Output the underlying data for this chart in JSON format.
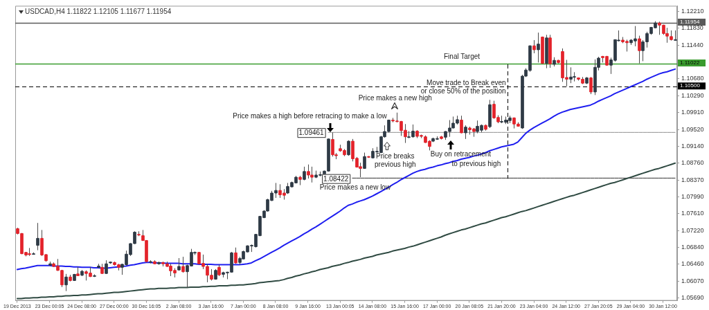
{
  "chart_data": {
    "type": "candlestick",
    "title": "USDCAD,H4 1.11822 1.12105 1.11677 1.11954",
    "categories": [
      "19 Dec 2013",
      null,
      null,
      null,
      null,
      null,
      null,
      null,
      "23 Dec 00:05",
      null,
      null,
      null,
      null,
      null,
      null,
      null,
      "24 Dec 08:00",
      null,
      null,
      null,
      null,
      null,
      null,
      null,
      "27 Dec 00:00",
      null,
      null,
      null,
      null,
      null,
      null,
      null,
      "30 Dec 16:05",
      null,
      null,
      null,
      null,
      null,
      null,
      null,
      "2 Jan 08:00",
      null,
      null,
      null,
      null,
      null,
      null,
      null,
      "3 Jan 16:00",
      null,
      null,
      null,
      null,
      null,
      null,
      null,
      "7 Jan 00:00",
      null,
      null,
      null,
      null,
      null,
      null,
      null,
      "8 Jan 08:00",
      null,
      null,
      null,
      null,
      null,
      null,
      null,
      "9 Jan 16:00",
      null,
      null,
      null,
      null,
      null,
      null,
      null,
      "13 Jan 00:05",
      null,
      null,
      null,
      null,
      null,
      null,
      null,
      "14 Jan 08:00",
      null,
      null,
      null,
      null,
      null,
      null,
      null,
      "15 Jan 16:00",
      null,
      null,
      null,
      null,
      null,
      null,
      null,
      "17 Jan 00:00",
      null,
      null,
      null,
      null,
      null,
      null,
      null,
      "20 Jan 08:05",
      null,
      null,
      null,
      null,
      null,
      null,
      null,
      "21 Jan 20:00",
      null,
      null,
      null,
      null,
      null,
      null,
      null,
      "23 Jan 04:00",
      null,
      null,
      null,
      null,
      null,
      null,
      null,
      "24 Jan 12:00",
      null,
      null,
      null,
      null,
      null,
      null,
      null,
      "27 Jan 20:05",
      null,
      null,
      null,
      null,
      null,
      null,
      null,
      "29 Jan 04:00",
      null,
      null,
      null,
      null,
      null,
      null,
      null,
      "30 Jan 12:00",
      null,
      null,
      null
    ],
    "ylim": [
      1.0563,
      1.1234
    ],
    "yticks": [
      {
        "value": 1.0569,
        "label": "1.05690"
      },
      {
        "value": 1.0607,
        "label": "1.06070"
      },
      {
        "value": 1.0646,
        "label": "1.06460"
      },
      {
        "value": 1.0684,
        "label": "1.06840"
      },
      {
        "value": 1.0722,
        "label": "1.07220"
      },
      {
        "value": 1.0761,
        "label": "1.07610"
      },
      {
        "value": 1.0799,
        "label": "1.07990"
      },
      {
        "value": 1.0837,
        "label": "1.08370"
      },
      {
        "value": 1.0876,
        "label": "1.08760"
      },
      {
        "value": 1.0914,
        "label": "1.09140"
      },
      {
        "value": 1.0952,
        "label": "1.09520"
      },
      {
        "value": 1.0991,
        "label": "1.09910"
      },
      {
        "value": 1.1029,
        "label": "1.10290"
      },
      {
        "value": 1.1068,
        "label": "1.10680"
      },
      {
        "value": 1.1144,
        "label": "1.11440"
      },
      {
        "value": 1.1183,
        "label": "1.11830"
      },
      {
        "value": 1.1221,
        "label": "1.12210"
      }
    ],
    "series": [
      {
        "type": "line",
        "color": "#1e1ef0",
        "values": [
          1.0634,
          1.0636,
          1.0637,
          1.0639,
          1.0641,
          1.0643,
          1.0643,
          1.0643,
          1.0643,
          1.0642,
          1.0642,
          1.0642,
          1.0641,
          1.0641,
          1.064,
          1.064,
          1.0639,
          1.0639,
          1.0639,
          1.0638,
          1.0638,
          1.0637,
          1.0637,
          1.0638,
          1.0639,
          1.064,
          1.0641,
          1.0642,
          1.0644,
          1.0645,
          1.0647,
          1.0649,
          1.065,
          1.065,
          1.0649,
          1.0649,
          1.0649,
          1.0648,
          1.0648,
          1.0648,
          1.0648,
          1.0647,
          1.0647,
          1.0647,
          1.0647,
          1.0646,
          1.0646,
          1.0646,
          1.0646,
          1.0645,
          1.0645,
          1.0645,
          1.0645,
          1.0645,
          1.0645,
          1.0645,
          1.0646,
          1.0647,
          1.0649,
          1.0654,
          1.0658,
          1.0663,
          1.0668,
          1.0673,
          1.0678,
          1.0683,
          1.0689,
          1.0694,
          1.0699,
          1.0704,
          1.0709,
          1.0715,
          1.072,
          1.0726,
          1.0731,
          1.0737,
          1.0743,
          1.0749,
          1.0755,
          1.0761,
          1.0767,
          1.0774,
          1.078,
          1.0783,
          1.0787,
          1.079,
          1.0793,
          1.0797,
          1.0801,
          1.0806,
          1.0811,
          1.0816,
          1.0821,
          1.0827,
          1.0832,
          1.0838,
          1.0843,
          1.0848,
          1.0853,
          1.0857,
          1.086,
          1.0862,
          1.0865,
          1.0867,
          1.087,
          1.0872,
          1.0875,
          1.0877,
          1.088,
          1.0882,
          1.0885,
          1.0887,
          1.0889,
          1.0892,
          1.0894,
          1.0897,
          1.09,
          1.0904,
          1.0907,
          1.091,
          1.0913,
          1.0915,
          1.0917,
          1.0919,
          1.0924,
          1.0934,
          1.0944,
          1.0951,
          1.0957,
          1.0962,
          1.0967,
          1.0972,
          1.0977,
          1.0983,
          1.0988,
          1.0992,
          1.0995,
          1.0998,
          1.1,
          1.1002,
          1.1004,
          1.1006,
          1.1008,
          1.1012,
          1.1017,
          1.1021,
          1.1025,
          1.1029,
          1.1034,
          1.1038,
          1.1042,
          1.1046,
          1.105,
          1.1054,
          1.1058,
          1.1062,
          1.1067,
          1.1071,
          1.1075,
          1.1079,
          1.1082,
          1.1084,
          1.1087,
          1.109
        ]
      },
      {
        "type": "line",
        "color": "#2f4a42",
        "values": [
          1.0568,
          1.0568,
          1.0569,
          1.0569,
          1.057,
          1.057,
          1.0571,
          1.0571,
          1.0572,
          1.0572,
          1.0573,
          1.0573,
          1.0574,
          1.0574,
          1.0575,
          1.0575,
          1.0576,
          1.0576,
          1.0577,
          1.0578,
          1.0579,
          1.0579,
          1.058,
          1.0581,
          1.0582,
          1.0582,
          1.0583,
          1.0584,
          1.0585,
          1.0586,
          1.0587,
          1.0588,
          1.0589,
          1.059,
          1.059,
          1.0591,
          1.0591,
          1.0591,
          1.0592,
          1.0592,
          1.0593,
          1.0593,
          1.0593,
          1.0594,
          1.0594,
          1.0594,
          1.0595,
          1.0595,
          1.0596,
          1.0596,
          1.0597,
          1.0597,
          1.0597,
          1.0598,
          1.0598,
          1.0599,
          1.0599,
          1.06,
          1.0601,
          1.0602,
          1.0604,
          1.0605,
          1.0606,
          1.0607,
          1.0608,
          1.0609,
          1.0611,
          1.0614,
          1.0616,
          1.0619,
          1.0621,
          1.0624,
          1.0626,
          1.0629,
          1.0631,
          1.0634,
          1.0636,
          1.0638,
          1.0641,
          1.0643,
          1.0645,
          1.0648,
          1.065,
          1.0653,
          1.0655,
          1.0657,
          1.066,
          1.0662,
          1.0664,
          1.0667,
          1.0669,
          1.0671,
          1.0673,
          1.0676,
          1.0678,
          1.068,
          1.0682,
          1.0685,
          1.0687,
          1.069,
          1.0693,
          1.0696,
          1.0699,
          1.0702,
          1.0705,
          1.0708,
          1.0712,
          1.0715,
          1.0718,
          1.0721,
          1.0724,
          1.0726,
          1.0729,
          1.0732,
          1.0735,
          1.0738,
          1.074,
          1.0743,
          1.0746,
          1.0749,
          1.0752,
          1.0754,
          1.0757,
          1.076,
          1.0763,
          1.0766,
          1.0768,
          1.0771,
          1.0774,
          1.0777,
          1.078,
          1.0783,
          1.0786,
          1.0789,
          1.0792,
          1.0795,
          1.0798,
          1.0801,
          1.0803,
          1.0806,
          1.0809,
          1.0812,
          1.0815,
          1.0818,
          1.0821,
          1.0824,
          1.0827,
          1.083,
          1.0832,
          1.0835,
          1.0838,
          1.0841,
          1.0844,
          1.0847,
          1.085,
          1.0853,
          1.0856,
          1.0859,
          1.0862,
          1.0864,
          1.0867,
          1.087,
          1.0873,
          1.0876
        ]
      },
      {
        "type": "line",
        "color": "#909090",
        "values": [
          null,
          null,
          null,
          null,
          null,
          null,
          null,
          null,
          null,
          null,
          null,
          null,
          null,
          null,
          null,
          null,
          null,
          null,
          null,
          null,
          null,
          null,
          null,
          null,
          null,
          null,
          null,
          null,
          null,
          null,
          null,
          null,
          null,
          null,
          null,
          null,
          null,
          null,
          null,
          null,
          null,
          null,
          null,
          null,
          null,
          null,
          null,
          null,
          null,
          null,
          null,
          null,
          null,
          null,
          null,
          null,
          null,
          null,
          null,
          null,
          null,
          null,
          null,
          null,
          null,
          null,
          null,
          null,
          null,
          null,
          null,
          null,
          null,
          null,
          null,
          null,
          null,
          1.0946,
          1.0946,
          1.0946,
          1.0946,
          1.0946,
          1.0946,
          1.0946,
          1.0946,
          1.0946,
          1.0946,
          1.0946,
          1.0946,
          1.0946,
          1.0946,
          1.0946,
          1.0946,
          1.0946,
          1.0946,
          1.0946,
          1.0946,
          1.0946,
          1.0946,
          1.0946,
          1.0946,
          1.0946,
          1.0946,
          1.0946,
          1.0946,
          1.0946,
          1.0946,
          1.0946,
          1.0946,
          1.0946,
          1.0946,
          1.0946,
          1.0946,
          1.0946,
          1.0946,
          1.0946,
          1.0946,
          1.0946,
          1.0946,
          1.0946,
          1.0946,
          1.0946,
          1.0946,
          1.0946,
          1.0946,
          1.0946,
          1.0946,
          1.0946,
          1.0946,
          1.0946,
          1.0946,
          1.0946,
          1.0946,
          1.0946,
          1.0946,
          1.0946,
          1.0946,
          1.0946,
          1.0946,
          1.0946,
          1.0946,
          1.0946,
          1.0946,
          1.0946,
          1.0946,
          1.0946,
          1.0946,
          1.0946,
          1.0946,
          1.0946,
          1.0946,
          1.0946,
          1.0946,
          1.0946,
          1.0946,
          1.0946,
          1.0946,
          1.0946,
          1.0946,
          1.0946,
          1.0946,
          1.0946,
          1.0946,
          1.0946
        ]
      },
      {
        "type": "line",
        "color": "#303030",
        "values": [
          null,
          null,
          null,
          null,
          null,
          null,
          null,
          null,
          null,
          null,
          null,
          null,
          null,
          null,
          null,
          null,
          null,
          null,
          null,
          null,
          null,
          null,
          null,
          null,
          null,
          null,
          null,
          null,
          null,
          null,
          null,
          null,
          null,
          null,
          null,
          null,
          null,
          null,
          null,
          null,
          null,
          null,
          null,
          null,
          null,
          null,
          null,
          null,
          null,
          null,
          null,
          null,
          null,
          null,
          null,
          null,
          null,
          null,
          null,
          null,
          null,
          null,
          null,
          null,
          null,
          null,
          null,
          null,
          null,
          null,
          null,
          null,
          null,
          null,
          null,
          null,
          null,
          null,
          null,
          null,
          null,
          null,
          null,
          1.0842,
          1.0842,
          1.0842,
          1.0842,
          1.0842,
          1.0842,
          1.0842,
          1.0842,
          1.0842,
          1.0842,
          1.0842,
          1.0842,
          1.0842,
          1.0842,
          1.0842,
          1.0842,
          1.0842,
          1.0842,
          1.0842,
          1.0842,
          1.0842,
          1.0842,
          1.0842,
          1.0842,
          1.0842,
          1.0842,
          1.0842,
          1.0842,
          1.0842,
          1.0842,
          1.0842,
          1.0842,
          1.0842,
          1.0842,
          1.0842,
          1.0842,
          1.0842,
          1.0842,
          1.0842,
          1.0842,
          1.0842,
          1.0842,
          1.0842,
          1.0842,
          1.0842,
          1.0842,
          1.0842,
          1.0842,
          1.0842,
          1.0842,
          1.0842,
          1.0842,
          1.0842,
          1.0842,
          1.0842,
          1.0842,
          1.0842,
          1.0842,
          1.0842,
          1.0842,
          1.0842,
          1.0842,
          1.0842,
          1.0842,
          1.0842,
          1.0842,
          1.0842,
          1.0842,
          1.0842,
          1.0842,
          1.0842,
          1.0842,
          1.0842,
          1.0842,
          1.0842,
          1.0842,
          1.0842,
          1.0842,
          1.0842,
          1.0842,
          1.0842
        ]
      },
      {
        "ohlc": [
          [
            1.0727,
            1.0729,
            1.0714,
            1.0716
          ],
          [
            1.0716,
            1.0717,
            1.0669,
            1.067
          ],
          [
            1.0673,
            1.0674,
            1.0664,
            1.0667
          ],
          [
            1.067,
            1.0683,
            1.0665,
            1.0668
          ],
          [
            1.067,
            1.0673,
            1.0669,
            1.067
          ],
          [
            1.0689,
            1.074,
            1.0678,
            1.0705
          ],
          [
            1.0705,
            1.0724,
            1.0665,
            1.0667
          ],
          [
            1.0668,
            1.0669,
            1.0652,
            1.0654
          ],
          [
            1.0644,
            1.0652,
            1.0642,
            1.0647
          ],
          [
            1.0647,
            1.065,
            1.064,
            1.0641
          ],
          [
            1.0642,
            1.0658,
            1.0631,
            1.0632
          ],
          [
            1.0632,
            1.0633,
            1.0594,
            1.0599
          ],
          [
            1.0599,
            1.0624,
            1.0585,
            1.0617
          ],
          [
            1.0617,
            1.0622,
            1.0607,
            1.0609
          ],
          [
            1.0609,
            1.0624,
            1.0608,
            1.0623
          ],
          [
            1.0624,
            1.064,
            1.0619,
            1.062
          ],
          [
            1.0621,
            1.0633,
            1.0619,
            1.063
          ],
          [
            1.0629,
            1.0632,
            1.0609,
            1.0625
          ],
          [
            1.0626,
            1.064,
            1.0617,
            1.0618
          ],
          [
            1.0619,
            1.0623,
            1.0617,
            1.062
          ],
          [
            1.0639,
            1.0647,
            1.0637,
            1.0642
          ],
          [
            1.0639,
            1.0647,
            1.0624,
            1.0625
          ],
          [
            1.0625,
            1.0655,
            1.0624,
            1.0647
          ],
          [
            1.0649,
            1.0652,
            1.0647,
            1.0651
          ],
          [
            1.065,
            1.0652,
            1.0643,
            1.0645
          ],
          [
            1.0645,
            1.0647,
            1.0632,
            1.0639
          ],
          [
            1.0639,
            1.0647,
            1.0622,
            1.0646
          ],
          [
            1.0645,
            1.0677,
            1.0643,
            1.0669
          ],
          [
            1.0668,
            1.0694,
            1.0665,
            1.0693
          ],
          [
            1.0693,
            1.0721,
            1.0692,
            1.0719
          ],
          [
            1.0714,
            1.0721,
            1.071,
            1.0713
          ],
          [
            1.0711,
            1.0724,
            1.0699,
            1.07
          ],
          [
            1.07,
            1.0701,
            1.065,
            1.0652
          ],
          [
            1.0651,
            1.0655,
            1.0648,
            1.0652
          ],
          [
            1.0652,
            1.0655,
            1.0646,
            1.0647
          ],
          [
            1.0647,
            1.0652,
            1.0645,
            1.065
          ],
          [
            1.065,
            1.0652,
            1.0641,
            1.0647
          ],
          [
            1.0647,
            1.0652,
            1.064,
            1.0641
          ],
          [
            1.0642,
            1.0647,
            1.0619,
            1.0631
          ],
          [
            1.0632,
            1.0637,
            1.0616,
            1.0626
          ],
          [
            1.0633,
            1.066,
            1.0632,
            1.0641
          ],
          [
            1.0641,
            1.0663,
            1.0627,
            1.0629
          ],
          [
            1.0629,
            1.0645,
            1.0592,
            1.0643
          ],
          [
            1.0642,
            1.0681,
            1.0641,
            1.0673
          ],
          [
            1.0672,
            1.0675,
            1.0667,
            1.0673
          ],
          [
            1.0673,
            1.0674,
            1.0646,
            1.0647
          ],
          [
            1.0648,
            1.0668,
            1.0635,
            1.0641
          ],
          [
            1.0641,
            1.0647,
            1.0605,
            1.0621
          ],
          [
            1.0621,
            1.0635,
            1.0609,
            1.0612
          ],
          [
            1.0612,
            1.0635,
            1.0611,
            1.0632
          ],
          [
            1.0639,
            1.0645,
            1.0619,
            1.0622
          ],
          [
            1.0623,
            1.0629,
            1.0616,
            1.0627
          ],
          [
            1.0627,
            1.0629,
            1.0612,
            1.0628
          ],
          [
            1.0628,
            1.0674,
            1.0627,
            1.0672
          ],
          [
            1.0672,
            1.0684,
            1.0647,
            1.0649
          ],
          [
            1.065,
            1.0663,
            1.0645,
            1.0659
          ],
          [
            1.0658,
            1.0677,
            1.0657,
            1.0675
          ],
          [
            1.0674,
            1.0689,
            1.0673,
            1.0688
          ],
          [
            1.0688,
            1.0691,
            1.0674,
            1.0689
          ],
          [
            1.0686,
            1.0715,
            1.0684,
            1.0714
          ],
          [
            1.0711,
            1.0756,
            1.071,
            1.0755
          ],
          [
            1.0752,
            1.0769,
            1.0751,
            1.0767
          ],
          [
            1.0767,
            1.0795,
            1.0766,
            1.0793
          ],
          [
            1.0791,
            1.0813,
            1.079,
            1.0808
          ],
          [
            1.0808,
            1.0831,
            1.0797,
            1.0814
          ],
          [
            1.0814,
            1.0828,
            1.0797,
            1.0804
          ],
          [
            1.0808,
            1.0817,
            1.0793,
            1.0803
          ],
          [
            1.0808,
            1.0831,
            1.0806,
            1.0823
          ],
          [
            1.0822,
            1.0834,
            1.0821,
            1.0832
          ],
          [
            1.0831,
            1.0847,
            1.083,
            1.0844
          ],
          [
            1.0844,
            1.0847,
            1.0826,
            1.0839
          ],
          [
            1.0839,
            1.0868,
            1.0837,
            1.0857
          ],
          [
            1.0857,
            1.0873,
            1.0841,
            1.0849
          ],
          [
            1.0849,
            1.0868,
            1.0832,
            1.0844
          ],
          [
            1.0844,
            1.0859,
            1.0842,
            1.0849
          ],
          [
            1.085,
            1.0857,
            1.0846,
            1.085
          ],
          [
            1.0849,
            1.0859,
            1.0848,
            1.0858
          ],
          [
            1.0858,
            1.0932,
            1.0857,
            1.0931
          ],
          [
            1.093,
            1.0946,
            1.0891,
            1.0895
          ],
          [
            1.0895,
            1.0899,
            1.0885,
            1.0893
          ],
          [
            1.0909,
            1.0918,
            1.0902,
            1.0904
          ],
          [
            1.0905,
            1.0908,
            1.0892,
            1.0895
          ],
          [
            1.0895,
            1.0928,
            1.0893,
            1.0926
          ],
          [
            1.0926,
            1.0931,
            1.088,
            1.0886
          ],
          [
            1.0887,
            1.089,
            1.0866,
            1.0867
          ],
          [
            1.0868,
            1.0877,
            1.0844,
            1.0864
          ],
          [
            1.0864,
            1.09,
            1.0863,
            1.0891
          ],
          [
            1.0891,
            1.0892,
            1.0888,
            1.089
          ],
          [
            1.0888,
            1.091,
            1.0887,
            1.0903
          ],
          [
            1.0902,
            1.0913,
            1.09,
            1.0903
          ],
          [
            1.09,
            1.0938,
            1.0899,
            1.0936
          ],
          [
            1.0936,
            1.0962,
            1.0934,
            1.0948
          ],
          [
            1.0948,
            1.0975,
            1.0946,
            1.0974
          ],
          [
            1.0974,
            1.0979,
            1.0969,
            1.0972
          ],
          [
            1.0972,
            1.0991,
            1.0969,
            1.0971
          ],
          [
            1.0971,
            1.0972,
            1.0938,
            1.095
          ],
          [
            1.0951,
            1.0965,
            1.0922,
            1.0936
          ],
          [
            1.0935,
            1.0949,
            1.0933,
            1.0936
          ],
          [
            1.0936,
            1.0964,
            1.0934,
            1.0949
          ],
          [
            1.0949,
            1.0951,
            1.0933,
            1.0937
          ],
          [
            1.0939,
            1.0941,
            1.0933,
            1.0937
          ],
          [
            1.0936,
            1.0939,
            1.0922,
            1.0923
          ],
          [
            1.0926,
            1.0928,
            1.0905,
            1.0914
          ],
          [
            1.0926,
            1.0934,
            1.0924,
            1.0932
          ],
          [
            1.0932,
            1.0937,
            1.0929,
            1.0932
          ],
          [
            1.0936,
            1.0938,
            1.093,
            1.0932
          ],
          [
            1.0935,
            1.0949,
            1.0929,
            1.0948
          ],
          [
            1.0948,
            1.0974,
            1.0936,
            1.0956
          ],
          [
            1.0956,
            1.0982,
            1.0955,
            1.0967
          ],
          [
            1.0967,
            1.0984,
            1.0964,
            1.0975
          ],
          [
            1.0974,
            1.0984,
            1.0944,
            1.0945
          ],
          [
            1.0945,
            1.0962,
            1.0931,
            1.0958
          ],
          [
            1.0956,
            1.0959,
            1.0941,
            1.0952
          ],
          [
            1.0954,
            1.0956,
            1.0936,
            1.0948
          ],
          [
            1.0948,
            1.0973,
            1.0944,
            1.096
          ],
          [
            1.0951,
            1.0964,
            1.0946,
            1.0962
          ],
          [
            1.0962,
            1.0964,
            1.095,
            1.0953
          ],
          [
            1.0959,
            1.102,
            1.0956,
            1.1009
          ],
          [
            1.101,
            1.1018,
            1.0977,
            1.0979
          ],
          [
            1.098,
            1.0985,
            1.0967,
            1.097
          ],
          [
            1.097,
            1.0984,
            1.0967,
            1.0971
          ],
          [
            1.0969,
            1.0982,
            1.0965,
            1.0974
          ],
          [
            1.0973,
            1.0984,
            1.0967,
            1.0979
          ],
          [
            1.0979,
            1.098,
            1.0955,
            1.0965
          ],
          [
            1.0965,
            1.0969,
            1.0959,
            1.096
          ],
          [
            1.0956,
            1.1077,
            1.0954,
            1.1074
          ],
          [
            1.1074,
            1.1092,
            1.1072,
            1.1088
          ],
          [
            1.1087,
            1.1144,
            1.1084,
            1.1143
          ],
          [
            1.1143,
            1.1156,
            1.1126,
            1.1134
          ],
          [
            1.1134,
            1.1173,
            1.1105,
            1.1147
          ],
          [
            1.1163,
            1.1164,
            1.1102,
            1.1103
          ],
          [
            1.1103,
            1.1168,
            1.1092,
            1.1161
          ],
          [
            1.1161,
            1.1168,
            1.1093,
            1.1102
          ],
          [
            1.1101,
            1.1117,
            1.1096,
            1.111
          ],
          [
            1.111,
            1.1111,
            1.1103,
            1.1105
          ],
          [
            1.113,
            1.1137,
            1.1061,
            1.107
          ],
          [
            1.1071,
            1.1111,
            1.1051,
            1.1067
          ],
          [
            1.1067,
            1.1094,
            1.1058,
            1.1072
          ],
          [
            1.1072,
            1.1083,
            1.1062,
            1.1073
          ],
          [
            1.107,
            1.1071,
            1.1064,
            1.1067
          ],
          [
            1.1067,
            1.1072,
            1.1056,
            1.1058
          ],
          [
            1.1058,
            1.1072,
            1.1056,
            1.107
          ],
          [
            1.107,
            1.1072,
            1.1033,
            1.1038
          ],
          [
            1.1038,
            1.1112,
            1.1031,
            1.1094
          ],
          [
            1.1094,
            1.1118,
            1.1087,
            1.1115
          ],
          [
            1.1119,
            1.112,
            1.1105,
            1.1116
          ],
          [
            1.1119,
            1.112,
            1.1098,
            1.1099
          ],
          [
            1.1099,
            1.1116,
            1.1079,
            1.1111
          ],
          [
            1.111,
            1.1157,
            1.1107,
            1.1157
          ],
          [
            1.1156,
            1.1178,
            1.1153,
            1.1156
          ],
          [
            1.1156,
            1.1163,
            1.1149,
            1.1152
          ],
          [
            1.1153,
            1.1157,
            1.113,
            1.115
          ],
          [
            1.115,
            1.1158,
            1.1145,
            1.1156
          ],
          [
            1.1154,
            1.1188,
            1.1142,
            1.1159
          ],
          [
            1.1159,
            1.1166,
            1.1103,
            1.1132
          ],
          [
            1.1132,
            1.1156,
            1.1108,
            1.1152
          ],
          [
            1.1152,
            1.1175,
            1.1139,
            1.1171
          ],
          [
            1.1171,
            1.1186,
            1.1168,
            1.1185
          ],
          [
            1.1184,
            1.1199,
            1.1183,
            1.1195
          ],
          [
            1.1195,
            1.1198,
            1.1168,
            1.119
          ],
          [
            1.119,
            1.1191,
            1.1168,
            1.1171
          ],
          [
            1.1171,
            1.1184,
            1.115,
            1.1165
          ],
          [
            1.1164,
            1.1178,
            1.1155,
            1.1157
          ],
          [
            1.1157,
            1.1178,
            1.1155,
            1.1157
          ]
        ],
        "colors": [
          "#e3232b",
          "#e3232b",
          "#e3232b",
          "#e3232b",
          "#2f3a45",
          "#2f3a45",
          "#e3232b",
          "#e3232b",
          "#2f3a45",
          "#e3232b",
          "#e3232b",
          "#e3232b",
          "#2f3a45",
          "#e3232b",
          "#2f3a45",
          "#e3232b",
          "#2f3a45",
          "#e3232b",
          "#e3232b",
          "#2f3a45",
          "#2f3a45",
          "#e3232b",
          "#2f3a45",
          "#2f3a45",
          "#e3232b",
          "#e3232b",
          "#2f3a45",
          "#2f3a45",
          "#2f3a45",
          "#2f3a45",
          "#e3232b",
          "#e3232b",
          "#e3232b",
          "#2f3a45",
          "#e3232b",
          "#2f3a45",
          "#e3232b",
          "#e3232b",
          "#e3232b",
          "#e3232b",
          "#2f3a45",
          "#e3232b",
          "#2f3a45",
          "#2f3a45",
          "#2f3a45",
          "#e3232b",
          "#e3232b",
          "#e3232b",
          "#e3232b",
          "#2f3a45",
          "#e3232b",
          "#2f3a45",
          "#2f3a45",
          "#2f3a45",
          "#e3232b",
          "#2f3a45",
          "#2f3a45",
          "#2f3a45",
          "#2f3a45",
          "#2f3a45",
          "#2f3a45",
          "#2f3a45",
          "#2f3a45",
          "#2f3a45",
          "#2f3a45",
          "#e3232b",
          "#e3232b",
          "#2f3a45",
          "#2f3a45",
          "#2f3a45",
          "#e3232b",
          "#2f3a45",
          "#e3232b",
          "#e3232b",
          "#2f3a45",
          "#2f3a45",
          "#2f3a45",
          "#2f3a45",
          "#e3232b",
          "#e3232b",
          "#e3232b",
          "#e3232b",
          "#2f3a45",
          "#e3232b",
          "#e3232b",
          "#e3232b",
          "#2f3a45",
          "#e3232b",
          "#2f3a45",
          "#2f3a45",
          "#2f3a45",
          "#2f3a45",
          "#2f3a45",
          "#e3232b",
          "#e3232b",
          "#e3232b",
          "#e3232b",
          "#2f3a45",
          "#2f3a45",
          "#e3232b",
          "#e3232b",
          "#e3232b",
          "#e3232b",
          "#2f3a45",
          "#2f3a45",
          "#e3232b",
          "#2f3a45",
          "#2f3a45",
          "#2f3a45",
          "#2f3a45",
          "#e3232b",
          "#2f3a45",
          "#e3232b",
          "#e3232b",
          "#2f3a45",
          "#2f3a45",
          "#e3232b",
          "#2f3a45",
          "#e3232b",
          "#e3232b",
          "#2f3a45",
          "#2f3a45",
          "#2f3a45",
          "#e3232b",
          "#e3232b",
          "#2f3a45",
          "#2f3a45",
          "#2f3a45",
          "#e3232b",
          "#2f3a45",
          "#e3232b",
          "#2f3a45",
          "#e3232b",
          "#2f3a45",
          "#e3232b",
          "#e3232b",
          "#e3232b",
          "#2f3a45",
          "#2f3a45",
          "#e3232b",
          "#e3232b",
          "#2f3a45",
          "#e3232b",
          "#2f3a45",
          "#2f3a45",
          "#e3232b",
          "#e3232b",
          "#2f3a45",
          "#2f3a45",
          "#2f3a45",
          "#e3232b",
          "#e3232b",
          "#2f3a45",
          "#2f3a45",
          "#e3232b",
          "#2f3a45",
          "#2f3a45",
          "#2f3a45",
          "#2f3a45",
          "#e3232b",
          "#e3232b",
          "#e3232b",
          "#e3232b",
          "#2f3a45"
        ]
      }
    ],
    "ref_lines": [
      {
        "axis": "y",
        "value": 1.11954,
        "color": "#5a5a5a",
        "label": "1.11954"
      },
      {
        "axis": "y",
        "value": 1.11022,
        "color": "#3a9b2e",
        "label": "1.11022"
      },
      {
        "axis": "y",
        "value": 1.105,
        "color": "#000000",
        "line_style": "dashed",
        "label": "1.10500"
      }
    ],
    "annotations": [
      "Price makes a high before retracing to make a low",
      "Price makes a new high",
      "Price breaks\nprevious high",
      "Buy on retracement",
      "to previous high",
      "Price makes a new low",
      "Move trade to Break even\nor close 50% of the position",
      "Final Target",
      "1.09461",
      "1.08422"
    ]
  }
}
